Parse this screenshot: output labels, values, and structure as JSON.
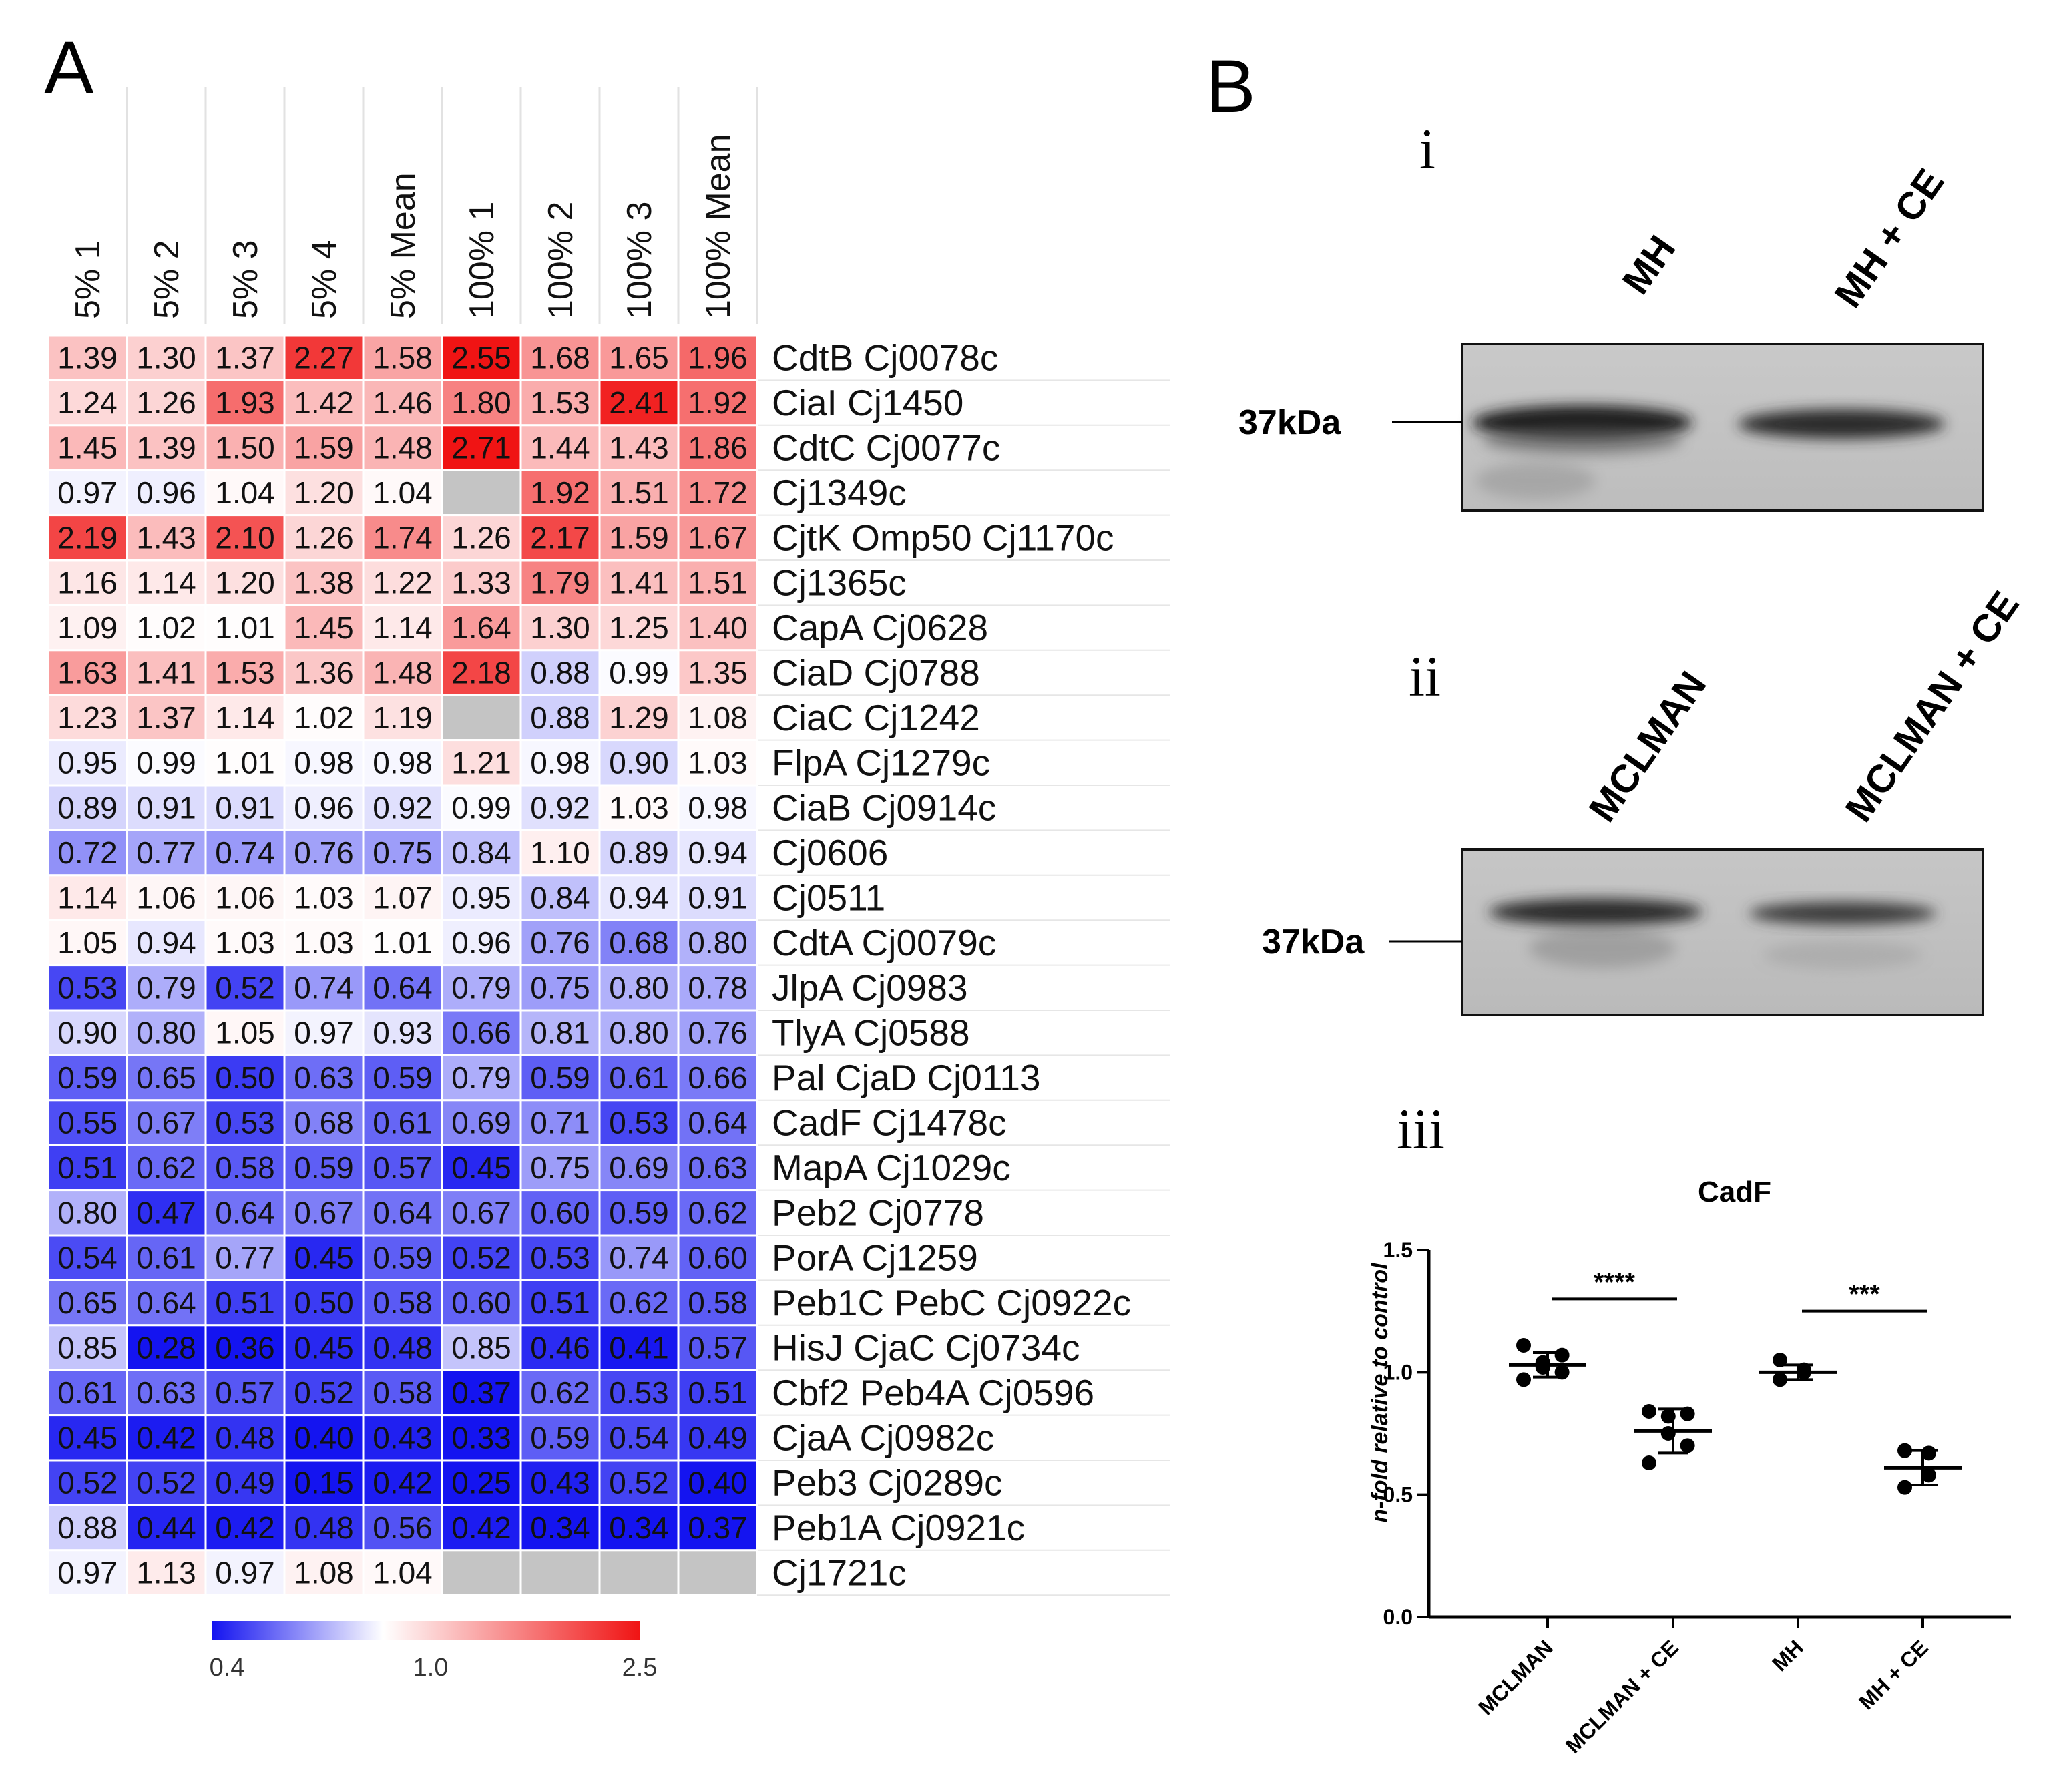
{
  "panels": {
    "A": "A",
    "B": "B",
    "blot_i": "i",
    "blot_ii": "ii",
    "blot_iii": "iii"
  },
  "blots": [
    {
      "lanes": [
        "MH",
        "MH + CE"
      ],
      "marker": "37kDa"
    },
    {
      "lanes": [
        "MCLMAN",
        "MCLMAN + CE"
      ],
      "marker": "37kDa"
    }
  ],
  "chart_data": [
    {
      "type": "heatmap",
      "columns": [
        "5% 1",
        "5% 2",
        "5% 3",
        "5% 4",
        "5% Mean",
        "100% 1",
        "100% 2",
        "100% 3",
        "100% Mean"
      ],
      "rows": [
        {
          "label": "CdtB Cj0078c",
          "values": [
            1.39,
            1.3,
            1.37,
            2.27,
            1.58,
            2.55,
            1.68,
            1.65,
            1.96
          ]
        },
        {
          "label": "CiaI Cj1450",
          "values": [
            1.24,
            1.26,
            1.93,
            1.42,
            1.46,
            1.8,
            1.53,
            2.41,
            1.92
          ]
        },
        {
          "label": "CdtC Cj0077c",
          "values": [
            1.45,
            1.39,
            1.5,
            1.59,
            1.48,
            2.71,
            1.44,
            1.43,
            1.86
          ]
        },
        {
          "label": "Cj1349c",
          "values": [
            0.97,
            0.96,
            1.04,
            1.2,
            1.04,
            null,
            1.92,
            1.51,
            1.72
          ]
        },
        {
          "label": "CjtK Omp50 Cj1170c",
          "values": [
            2.19,
            1.43,
            2.1,
            1.26,
            1.74,
            1.26,
            2.17,
            1.59,
            1.67
          ]
        },
        {
          "label": "Cj1365c",
          "values": [
            1.16,
            1.14,
            1.2,
            1.38,
            1.22,
            1.33,
            1.79,
            1.41,
            1.51
          ]
        },
        {
          "label": "CapA Cj0628",
          "values": [
            1.09,
            1.02,
            1.01,
            1.45,
            1.14,
            1.64,
            1.3,
            1.25,
            1.4
          ]
        },
        {
          "label": "CiaD Cj0788",
          "values": [
            1.63,
            1.41,
            1.53,
            1.36,
            1.48,
            2.18,
            0.88,
            0.99,
            1.35
          ]
        },
        {
          "label": "CiaC Cj1242",
          "values": [
            1.23,
            1.37,
            1.14,
            1.02,
            1.19,
            null,
            0.88,
            1.29,
            1.08
          ]
        },
        {
          "label": "FlpA Cj1279c",
          "values": [
            0.95,
            0.99,
            1.01,
            0.98,
            0.98,
            1.21,
            0.98,
            0.9,
            1.03
          ]
        },
        {
          "label": "CiaB Cj0914c",
          "values": [
            0.89,
            0.91,
            0.91,
            0.96,
            0.92,
            0.99,
            0.92,
            1.03,
            0.98
          ]
        },
        {
          "label": "Cj0606",
          "values": [
            0.72,
            0.77,
            0.74,
            0.76,
            0.75,
            0.84,
            1.1,
            0.89,
            0.94
          ]
        },
        {
          "label": "Cj0511",
          "values": [
            1.14,
            1.06,
            1.06,
            1.03,
            1.07,
            0.95,
            0.84,
            0.94,
            0.91
          ]
        },
        {
          "label": "CdtA Cj0079c",
          "values": [
            1.05,
            0.94,
            1.03,
            1.03,
            1.01,
            0.96,
            0.76,
            0.68,
            0.8
          ]
        },
        {
          "label": "JlpA Cj0983",
          "values": [
            0.53,
            0.79,
            0.52,
            0.74,
            0.64,
            0.79,
            0.75,
            0.8,
            0.78
          ]
        },
        {
          "label": "TlyA Cj0588",
          "values": [
            0.9,
            0.8,
            1.05,
            0.97,
            0.93,
            0.66,
            0.81,
            0.8,
            0.76
          ]
        },
        {
          "label": "Pal CjaD Cj0113",
          "values": [
            0.59,
            0.65,
            0.5,
            0.63,
            0.59,
            0.79,
            0.59,
            0.61,
            0.66
          ]
        },
        {
          "label": "CadF Cj1478c",
          "values": [
            0.55,
            0.67,
            0.53,
            0.68,
            0.61,
            0.69,
            0.71,
            0.53,
            0.64
          ]
        },
        {
          "label": "MapA Cj1029c",
          "values": [
            0.51,
            0.62,
            0.58,
            0.59,
            0.57,
            0.45,
            0.75,
            0.69,
            0.63
          ]
        },
        {
          "label": "Peb2 Cj0778",
          "values": [
            0.8,
            0.47,
            0.64,
            0.67,
            0.64,
            0.67,
            0.6,
            0.59,
            0.62
          ]
        },
        {
          "label": "PorA Cj1259",
          "values": [
            0.54,
            0.61,
            0.77,
            0.45,
            0.59,
            0.52,
            0.53,
            0.74,
            0.6
          ]
        },
        {
          "label": "Peb1C PebC Cj0922c",
          "values": [
            0.65,
            0.64,
            0.51,
            0.5,
            0.58,
            0.6,
            0.51,
            0.62,
            0.58
          ]
        },
        {
          "label": "HisJ CjaC Cj0734c",
          "values": [
            0.85,
            0.28,
            0.36,
            0.45,
            0.48,
            0.85,
            0.46,
            0.41,
            0.57
          ]
        },
        {
          "label": "Cbf2 Peb4A Cj0596",
          "values": [
            0.61,
            0.63,
            0.57,
            0.52,
            0.58,
            0.37,
            0.62,
            0.53,
            0.51
          ]
        },
        {
          "label": "CjaA Cj0982c",
          "values": [
            0.45,
            0.42,
            0.48,
            0.4,
            0.43,
            0.33,
            0.59,
            0.54,
            0.49
          ]
        },
        {
          "label": "Peb3 Cj0289c",
          "values": [
            0.52,
            0.52,
            0.49,
            0.15,
            0.42,
            0.25,
            0.43,
            0.52,
            0.4
          ]
        },
        {
          "label": "Peb1A Cj0921c",
          "values": [
            0.88,
            0.44,
            0.42,
            0.48,
            0.56,
            0.42,
            0.34,
            0.34,
            0.37
          ]
        },
        {
          "label": "Cj1721c",
          "values": [
            0.97,
            1.13,
            0.97,
            1.08,
            1.04,
            null,
            null,
            null,
            null
          ]
        }
      ],
      "colorscale": {
        "min": 0.4,
        "mid": 1.0,
        "max": 2.5,
        "low_color": "#1414f0",
        "mid_color": "#ffffff",
        "high_color": "#f01414",
        "missing_color": "#c4c4c4",
        "ticks": [
          "0.4",
          "1.0",
          "2.5"
        ]
      }
    },
    {
      "type": "scatter",
      "title": "CadF",
      "ylabel": "n-fold relative to control",
      "ylim": [
        0.0,
        1.5
      ],
      "yticks": [
        "0.0",
        "0.5",
        "1.0",
        "1.5"
      ],
      "categories": [
        "MCLMAN",
        "MCLMAN + CE",
        "MH",
        "MH + CE"
      ],
      "groups": [
        {
          "name": "MCLMAN",
          "points": [
            0.97,
            1.0,
            1.02,
            1.04,
            1.07,
            1.11
          ],
          "mean": 1.03,
          "sd": 0.05
        },
        {
          "name": "MCLMAN + CE",
          "points": [
            0.63,
            0.7,
            0.75,
            0.82,
            0.83,
            0.84
          ],
          "mean": 0.76,
          "sd": 0.09
        },
        {
          "name": "MH",
          "points": [
            0.97,
            1.0,
            1.01,
            1.05
          ],
          "mean": 1.0,
          "sd": 0.03
        },
        {
          "name": "MH + CE",
          "points": [
            0.53,
            0.58,
            0.67,
            0.68
          ],
          "mean": 0.61,
          "sd": 0.07
        }
      ],
      "significance": [
        {
          "from": 0,
          "to": 1,
          "y": 1.3,
          "label": "****"
        },
        {
          "from": 2,
          "to": 3,
          "y": 1.25,
          "label": "***"
        }
      ]
    }
  ]
}
